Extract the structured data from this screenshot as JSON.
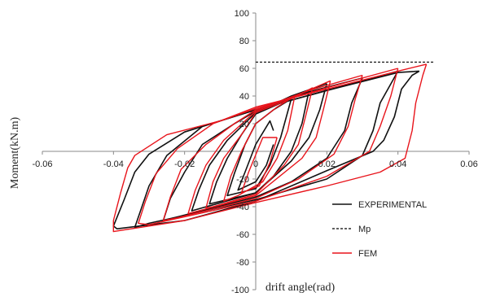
{
  "chart_data": {
    "type": "line",
    "xlabel": "drift angle(rad)",
    "ylabel": "Moment(kN.m)",
    "xlim": [
      -0.06,
      0.06
    ],
    "ylim": [
      -100,
      100
    ],
    "x_ticks": [
      "-0.06",
      "-0.04",
      "-0.02",
      "0",
      "0.02",
      "0.04",
      "0.06"
    ],
    "y_ticks": [
      "-100",
      "-80",
      "-60",
      "-40",
      "-20",
      "20",
      "40",
      "60",
      "80",
      "100"
    ],
    "legend_position": "bottom-right",
    "colors": {
      "experimental": "#111111",
      "mp": "#000000",
      "fem": "#e8141b"
    },
    "mp_line": {
      "name": "Mp",
      "y": 64.5,
      "x_range": [
        0,
        0.05
      ]
    },
    "series": [
      {
        "name": "EXPERIMENTAL",
        "style": "solid",
        "loops": [
          [
            [
              0.005,
              5
            ],
            [
              0.003,
              -10
            ],
            [
              0,
              -22
            ],
            [
              -0.005,
              -28
            ],
            [
              -0.003,
              -15
            ],
            [
              0,
              5
            ],
            [
              0.004,
              22
            ],
            [
              0.005,
              15
            ]
          ],
          [
            [
              0.01,
              38
            ],
            [
              0.007,
              10
            ],
            [
              0.004,
              -10
            ],
            [
              0,
              -27
            ],
            [
              -0.008,
              -32
            ],
            [
              -0.006,
              -16
            ],
            [
              -0.003,
              5
            ],
            [
              0,
              20
            ],
            [
              0.005,
              30
            ],
            [
              0.01,
              38
            ]
          ],
          [
            [
              0.015,
              44
            ],
            [
              0.013,
              20
            ],
            [
              0.01,
              0
            ],
            [
              0.005,
              -18
            ],
            [
              0,
              -30
            ],
            [
              -0.013,
              -38
            ],
            [
              -0.011,
              -22
            ],
            [
              -0.008,
              -5
            ],
            [
              -0.004,
              12
            ],
            [
              0,
              27
            ],
            [
              0.008,
              36
            ],
            [
              0.015,
              44
            ]
          ],
          [
            [
              0.02,
              49
            ],
            [
              0.018,
              30
            ],
            [
              0.015,
              10
            ],
            [
              0.01,
              -7
            ],
            [
              0,
              -30
            ],
            [
              -0.018,
              -43
            ],
            [
              -0.016,
              -28
            ],
            [
              -0.013,
              -10
            ],
            [
              -0.008,
              8
            ],
            [
              0,
              28
            ],
            [
              0.01,
              40
            ],
            [
              0.02,
              49
            ]
          ],
          [
            [
              0.03,
              53
            ],
            [
              0.027,
              35
            ],
            [
              0.025,
              15
            ],
            [
              0.02,
              -5
            ],
            [
              0.01,
              -22
            ],
            [
              0,
              -33
            ],
            [
              -0.026,
              -50
            ],
            [
              -0.024,
              -34
            ],
            [
              -0.02,
              -15
            ],
            [
              -0.015,
              5
            ],
            [
              -0.006,
              20
            ],
            [
              0,
              29
            ],
            [
              0.015,
              43
            ],
            [
              0.03,
              53
            ]
          ],
          [
            [
              0.04,
              58
            ],
            [
              0.035,
              35
            ],
            [
              0.033,
              15
            ],
            [
              0.03,
              -3
            ],
            [
              0.02,
              -20
            ],
            [
              0,
              -35
            ],
            [
              -0.03,
              -52
            ],
            [
              -0.034,
              -55
            ],
            [
              -0.032,
              -40
            ],
            [
              -0.03,
              -25
            ],
            [
              -0.025,
              -3
            ],
            [
              -0.015,
              18
            ],
            [
              0,
              30
            ],
            [
              0.02,
              44
            ],
            [
              0.04,
              58
            ]
          ],
          [
            [
              0.046,
              58
            ],
            [
              0.044,
              55
            ],
            [
              0.041,
              45
            ],
            [
              0.039,
              25
            ],
            [
              0.036,
              8
            ],
            [
              0.033,
              0
            ],
            [
              0.02,
              -14
            ],
            [
              0,
              -36
            ],
            [
              -0.02,
              -50
            ],
            [
              -0.039,
              -56
            ],
            [
              -0.04,
              -54
            ],
            [
              -0.037,
              -35
            ],
            [
              -0.034,
              -15
            ],
            [
              -0.03,
              -2
            ],
            [
              -0.02,
              14
            ],
            [
              0,
              30
            ],
            [
              0.02,
              44
            ],
            [
              0.04,
              57
            ],
            [
              0.046,
              58
            ]
          ]
        ]
      },
      {
        "name": "FEM",
        "style": "solid",
        "loops": [
          [
            [
              0.006,
              10
            ],
            [
              0.004,
              -8
            ],
            [
              0.001,
              -25
            ],
            [
              -0.004,
              -30
            ],
            [
              -0.002,
              -15
            ],
            [
              0.002,
              10
            ],
            [
              0.006,
              10
            ]
          ],
          [
            [
              0.011,
              40
            ],
            [
              0.009,
              15
            ],
            [
              0.006,
              -5
            ],
            [
              0.002,
              -22
            ],
            [
              -0.005,
              -32
            ],
            [
              -0.009,
              -36
            ],
            [
              -0.007,
              -18
            ],
            [
              -0.004,
              0
            ],
            [
              0,
              20
            ],
            [
              0.006,
              32
            ],
            [
              0.011,
              40
            ]
          ],
          [
            [
              0.016,
              46
            ],
            [
              0.014,
              25
            ],
            [
              0.012,
              5
            ],
            [
              0.008,
              -10
            ],
            [
              0,
              -31
            ],
            [
              -0.012,
              -40
            ],
            [
              -0.014,
              -41
            ],
            [
              -0.012,
              -22
            ],
            [
              -0.009,
              -5
            ],
            [
              -0.004,
              12
            ],
            [
              0,
              28
            ],
            [
              0.01,
              38
            ],
            [
              0.016,
              46
            ]
          ],
          [
            [
              0.021,
              51
            ],
            [
              0.019,
              30
            ],
            [
              0.017,
              10
            ],
            [
              0.013,
              -5
            ],
            [
              0,
              -32
            ],
            [
              -0.016,
              -43
            ],
            [
              -0.019,
              -45
            ],
            [
              -0.017,
              -28
            ],
            [
              -0.014,
              -10
            ],
            [
              -0.009,
              8
            ],
            [
              0,
              29
            ],
            [
              0.012,
              41
            ],
            [
              0.021,
              51
            ]
          ],
          [
            [
              0.03,
              55
            ],
            [
              0.028,
              38
            ],
            [
              0.026,
              18
            ],
            [
              0.022,
              -2
            ],
            [
              0.012,
              -20
            ],
            [
              0,
              -34
            ],
            [
              -0.022,
              -48
            ],
            [
              -0.026,
              -50
            ],
            [
              -0.024,
              -33
            ],
            [
              -0.021,
              -13
            ],
            [
              -0.014,
              5
            ],
            [
              -0.006,
              20
            ],
            [
              0,
              30
            ],
            [
              0.015,
              44
            ],
            [
              0.03,
              55
            ]
          ],
          [
            [
              0.04,
              60
            ],
            [
              0.038,
              40
            ],
            [
              0.035,
              18
            ],
            [
              0.032,
              0
            ],
            [
              0.02,
              -18
            ],
            [
              0,
              -36
            ],
            [
              -0.03,
              -53
            ],
            [
              -0.033,
              -52
            ],
            [
              -0.031,
              -36
            ],
            [
              -0.028,
              -16
            ],
            [
              -0.022,
              2
            ],
            [
              -0.012,
              20
            ],
            [
              0,
              31
            ],
            [
              0.02,
              46
            ],
            [
              0.04,
              60
            ]
          ],
          [
            [
              0.048,
              63
            ],
            [
              0.047,
              55
            ],
            [
              0.045,
              35
            ],
            [
              0.044,
              15
            ],
            [
              0.042,
              -5
            ],
            [
              0.035,
              -15
            ],
            [
              0.02,
              -25
            ],
            [
              0,
              -37
            ],
            [
              -0.02,
              -50
            ],
            [
              -0.04,
              -58
            ],
            [
              -0.04,
              -50
            ],
            [
              -0.038,
              -30
            ],
            [
              -0.036,
              -12
            ],
            [
              -0.034,
              -3
            ],
            [
              -0.025,
              12
            ],
            [
              -0.01,
              22
            ],
            [
              0,
              32
            ],
            [
              0.02,
              45
            ],
            [
              0.04,
              58
            ],
            [
              0.048,
              63
            ]
          ]
        ]
      }
    ]
  }
}
